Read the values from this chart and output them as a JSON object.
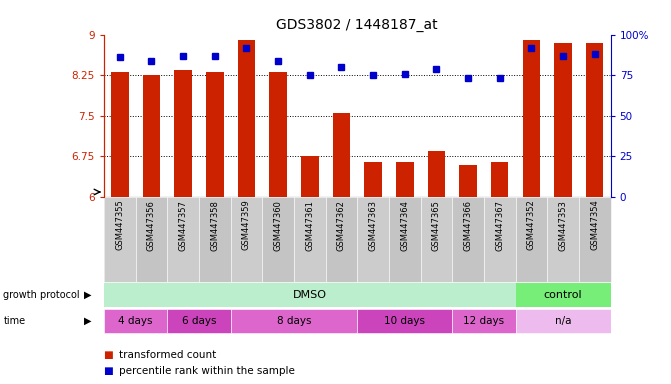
{
  "title": "GDS3802 / 1448187_at",
  "samples": [
    "GSM447355",
    "GSM447356",
    "GSM447357",
    "GSM447358",
    "GSM447359",
    "GSM447360",
    "GSM447361",
    "GSM447362",
    "GSM447363",
    "GSM447364",
    "GSM447365",
    "GSM447366",
    "GSM447367",
    "GSM447352",
    "GSM447353",
    "GSM447354"
  ],
  "bar_values": [
    8.3,
    8.25,
    8.35,
    8.3,
    8.9,
    8.3,
    6.75,
    7.55,
    6.65,
    6.65,
    6.85,
    6.6,
    6.65,
    8.9,
    8.85,
    8.85
  ],
  "dot_values": [
    86,
    84,
    87,
    87,
    92,
    84,
    75,
    80,
    75,
    76,
    79,
    73,
    73,
    92,
    87,
    88
  ],
  "ylim_left": [
    6,
    9
  ],
  "ylim_right": [
    0,
    100
  ],
  "yticks_left": [
    6,
    6.75,
    7.5,
    8.25,
    9
  ],
  "ytick_labels_left": [
    "6",
    "6.75",
    "7.5",
    "8.25",
    "9"
  ],
  "yticks_right": [
    0,
    25,
    50,
    75,
    100
  ],
  "ytick_labels_right": [
    "0",
    "25",
    "50",
    "75",
    "100%"
  ],
  "bar_color": "#cc2200",
  "dot_color": "#0000cc",
  "grid_lines": [
    6.75,
    7.5,
    8.25
  ],
  "time_boundaries": [
    {
      "label": "4 days",
      "start": 0,
      "end": 1,
      "color": "#dd66cc"
    },
    {
      "label": "6 days",
      "start": 2,
      "end": 3,
      "color": "#cc44bb"
    },
    {
      "label": "8 days",
      "start": 4,
      "end": 7,
      "color": "#dd66cc"
    },
    {
      "label": "10 days",
      "start": 8,
      "end": 10,
      "color": "#cc44bb"
    },
    {
      "label": "12 days",
      "start": 11,
      "end": 12,
      "color": "#dd66cc"
    },
    {
      "label": "n/a",
      "start": 13,
      "end": 15,
      "color": "#eebbee"
    }
  ],
  "proto_groups": [
    {
      "label": "DMSO",
      "start": 0,
      "end": 12,
      "color": "#bbeecc"
    },
    {
      "label": "control",
      "start": 13,
      "end": 15,
      "color": "#77ee77"
    }
  ],
  "legend_items": [
    {
      "label": "transformed count",
      "color": "#cc2200"
    },
    {
      "label": "percentile rank within the sample",
      "color": "#0000cc"
    }
  ],
  "sample_label_bg": "#cccccc",
  "bg_color": "#ffffff",
  "tick_color_left": "#cc2200",
  "tick_color_right": "#0000cc"
}
